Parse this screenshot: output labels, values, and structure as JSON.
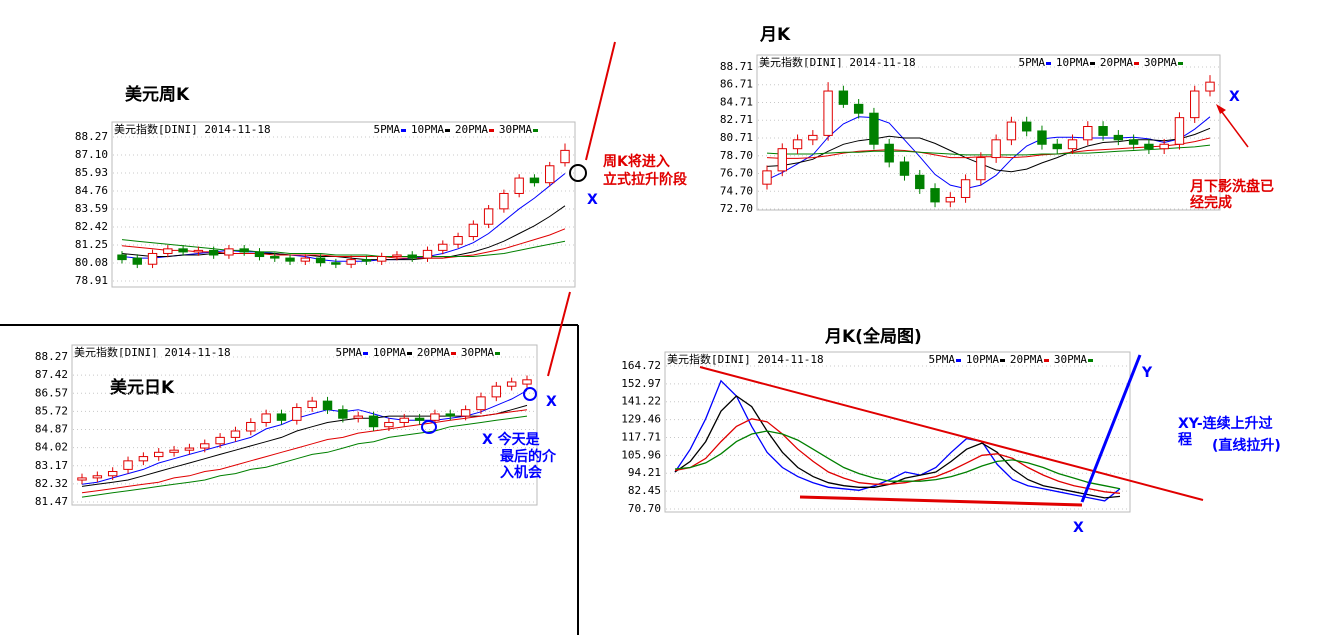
{
  "chart_data": [
    {
      "type": "candlestick",
      "title": "美元周K",
      "header": "美元指数[DINI] 2014-11-18",
      "annotations": [
        "周K将进入",
        "立式拉升阶段",
        "X"
      ],
      "ylim": [
        78.91,
        88.27
      ],
      "yticks": [
        88.27,
        {
          "value": 87.1,
          "label": "87.10"
        },
        85.93,
        84.76,
        83.59,
        82.42,
        81.25,
        80.08,
        78.91
      ],
      "grid": true,
      "up_color": "#e00000",
      "down_color": "#008000",
      "open": [
        80.6,
        80.4,
        80.0,
        80.7,
        81.0,
        80.8,
        80.9,
        80.6,
        81.0,
        80.8,
        80.5,
        80.4,
        80.2,
        80.4,
        80.1,
        80.0,
        80.3,
        80.2,
        80.5,
        80.6,
        80.4,
        80.9,
        81.3,
        81.8,
        82.6,
        83.6,
        84.6,
        85.6,
        85.3,
        86.6
      ],
      "high": [
        80.85,
        80.65,
        80.95,
        81.25,
        81.25,
        81.15,
        81.15,
        81.25,
        81.25,
        81.05,
        80.75,
        80.65,
        80.65,
        80.65,
        80.35,
        80.55,
        80.55,
        80.75,
        80.85,
        80.85,
        81.15,
        81.55,
        82.05,
        82.85,
        83.85,
        84.85,
        85.85,
        85.85,
        86.65,
        87.85
      ],
      "low": [
        80.05,
        79.75,
        79.75,
        80.45,
        80.55,
        80.55,
        80.35,
        80.35,
        80.55,
        80.25,
        80.15,
        79.95,
        79.95,
        79.85,
        79.75,
        79.75,
        79.95,
        79.95,
        80.25,
        80.15,
        80.15,
        80.65,
        81.05,
        81.55,
        82.35,
        83.35,
        84.35,
        85.05,
        85.05,
        86.35
      ],
      "close": [
        80.3,
        80.0,
        80.7,
        81.0,
        80.8,
        80.9,
        80.6,
        81.0,
        80.8,
        80.5,
        80.4,
        80.2,
        80.4,
        80.1,
        80.0,
        80.3,
        80.2,
        80.5,
        80.6,
        80.4,
        80.9,
        81.3,
        81.8,
        82.6,
        83.6,
        84.6,
        85.6,
        85.3,
        86.4,
        87.4
      ],
      "series": [
        {
          "name": "5PMA",
          "color": "#0000ff",
          "values": [
            80.5,
            80.4,
            80.4,
            80.5,
            80.6,
            80.7,
            80.8,
            80.9,
            80.8,
            80.8,
            80.7,
            80.6,
            80.5,
            80.3,
            80.2,
            80.2,
            80.2,
            80.3,
            80.3,
            80.4,
            80.5,
            80.7,
            81.0,
            81.4,
            82.0,
            82.8,
            83.6,
            84.3,
            85.1,
            85.9
          ]
        },
        {
          "name": "10PMA",
          "color": "#000000",
          "values": [
            80.7,
            80.6,
            80.5,
            80.5,
            80.6,
            80.6,
            80.7,
            80.7,
            80.7,
            80.7,
            80.7,
            80.6,
            80.6,
            80.5,
            80.5,
            80.4,
            80.3,
            80.3,
            80.3,
            80.3,
            80.4,
            80.4,
            80.6,
            80.8,
            81.1,
            81.5,
            82.0,
            82.5,
            83.1,
            83.8
          ]
        },
        {
          "name": "20PMA",
          "color": "#e00000",
          "values": [
            81.2,
            81.1,
            81.0,
            80.9,
            80.9,
            80.8,
            80.8,
            80.7,
            80.7,
            80.7,
            80.6,
            80.6,
            80.6,
            80.6,
            80.5,
            80.5,
            80.5,
            80.5,
            80.4,
            80.4,
            80.4,
            80.4,
            80.5,
            80.6,
            80.8,
            81.0,
            81.3,
            81.6,
            81.9,
            82.3
          ]
        },
        {
          "name": "30PMA",
          "color": "#008000",
          "values": [
            81.6,
            81.5,
            81.4,
            81.3,
            81.2,
            81.1,
            81.0,
            80.9,
            80.9,
            80.8,
            80.8,
            80.7,
            80.7,
            80.7,
            80.6,
            80.6,
            80.6,
            80.5,
            80.5,
            80.5,
            80.5,
            80.5,
            80.5,
            80.5,
            80.6,
            80.7,
            80.9,
            81.1,
            81.3,
            81.5
          ]
        }
      ]
    },
    {
      "type": "candlestick",
      "title": "月K",
      "header": "美元指数[DINI] 2014-11-18",
      "annotations": [
        "X",
        "月下影洗盘已",
        "经完成"
      ],
      "ylim": [
        72.7,
        88.71
      ],
      "yticks": [
        88.71,
        86.71,
        84.71,
        82.71,
        80.71,
        {
          "value": 78.7,
          "label": "78.70"
        },
        {
          "value": 76.7,
          "label": "76.70"
        },
        {
          "value": 74.7,
          "label": "74.70"
        },
        {
          "value": 72.7,
          "label": "72.70"
        }
      ],
      "grid": true,
      "up_color": "#e00000",
      "down_color": "#008000",
      "open": [
        75.5,
        77.0,
        79.5,
        80.5,
        81.0,
        86.0,
        84.5,
        83.5,
        80.0,
        78.0,
        76.5,
        75.0,
        73.5,
        74.0,
        76.0,
        78.5,
        80.5,
        82.5,
        81.5,
        80.0,
        79.5,
        80.5,
        82.0,
        81.0,
        80.5,
        80.0,
        79.5,
        80.0,
        83.0,
        86.0
      ],
      "high": [
        77.6,
        80.1,
        81.1,
        81.6,
        87.0,
        86.6,
        85.1,
        84.1,
        80.6,
        78.6,
        77.1,
        75.6,
        74.6,
        76.6,
        79.1,
        81.1,
        83.1,
        83.1,
        82.1,
        80.6,
        81.1,
        82.6,
        82.6,
        81.6,
        81.1,
        80.6,
        80.6,
        83.6,
        86.6,
        87.8
      ],
      "low": [
        74.9,
        76.4,
        78.9,
        79.9,
        80.4,
        84.1,
        82.9,
        79.4,
        77.4,
        75.9,
        74.4,
        72.9,
        72.9,
        73.4,
        75.4,
        77.9,
        79.9,
        80.9,
        79.4,
        78.9,
        78.9,
        79.9,
        80.4,
        79.9,
        79.4,
        78.9,
        78.9,
        79.4,
        82.4,
        85.4
      ],
      "close": [
        77.0,
        79.5,
        80.5,
        81.0,
        86.0,
        84.5,
        83.5,
        80.0,
        78.0,
        76.5,
        75.0,
        73.5,
        74.0,
        76.0,
        78.5,
        80.5,
        82.5,
        81.5,
        80.0,
        79.5,
        80.5,
        82.0,
        81.0,
        80.5,
        80.0,
        79.5,
        80.0,
        83.0,
        86.0,
        87.0
      ],
      "series": [
        {
          "name": "5PMA",
          "color": "#0000ff",
          "values": [
            76.0,
            76.8,
            77.8,
            78.8,
            80.8,
            82.3,
            83.1,
            83.0,
            82.4,
            80.5,
            78.6,
            76.6,
            75.4,
            75.0,
            75.4,
            76.5,
            78.3,
            79.8,
            80.6,
            80.8,
            80.8,
            80.7,
            80.7,
            80.7,
            80.8,
            80.6,
            80.2,
            80.6,
            81.7,
            83.1
          ]
        },
        {
          "name": "10PMA",
          "color": "#000000",
          "values": [
            77.5,
            77.6,
            77.9,
            78.3,
            79.2,
            80.0,
            80.4,
            80.6,
            80.9,
            80.7,
            80.7,
            80.1,
            79.3,
            78.5,
            77.8,
            77.1,
            76.9,
            77.2,
            77.9,
            78.5,
            79.2,
            79.8,
            80.2,
            80.3,
            80.5,
            80.5,
            80.4,
            80.6,
            81.1,
            81.8
          ]
        },
        {
          "name": "20PMA",
          "color": "#e00000",
          "values": [
            78.5,
            78.4,
            78.4,
            78.5,
            78.7,
            79.0,
            79.2,
            79.3,
            79.4,
            79.3,
            79.1,
            78.8,
            78.5,
            78.5,
            78.6,
            78.6,
            78.5,
            78.6,
            78.8,
            78.9,
            79.1,
            79.3,
            79.4,
            79.5,
            79.6,
            79.7,
            79.8,
            80.0,
            80.3,
            80.7
          ]
        },
        {
          "name": "30PMA",
          "color": "#008000",
          "values": [
            79.0,
            78.9,
            78.9,
            78.9,
            79.0,
            79.1,
            79.1,
            79.2,
            79.2,
            79.2,
            79.1,
            79.0,
            78.9,
            78.8,
            78.8,
            78.8,
            78.8,
            78.8,
            78.9,
            78.9,
            79.0,
            79.0,
            79.1,
            79.2,
            79.3,
            79.4,
            79.5,
            79.6,
            79.7,
            79.9
          ]
        }
      ]
    },
    {
      "type": "candlestick",
      "title": "美元日K",
      "header": "美元指数[DINI] 2014-11-18",
      "annotations": [
        "X",
        "X 今天是",
        "最后的介",
        "入机会"
      ],
      "ylim": [
        81.47,
        88.27
      ],
      "yticks": [
        88.27,
        87.42,
        86.57,
        85.72,
        84.87,
        84.02,
        83.17,
        82.32,
        81.47
      ],
      "grid": true,
      "up_color": "#e00000",
      "down_color": "#008000",
      "open": [
        82.5,
        82.6,
        82.7,
        83.0,
        83.4,
        83.6,
        83.8,
        83.9,
        84.0,
        84.2,
        84.5,
        84.8,
        85.2,
        85.6,
        85.3,
        85.9,
        86.2,
        85.8,
        85.4,
        85.5,
        85.0,
        85.2,
        85.4,
        85.3,
        85.6,
        85.5,
        85.8,
        86.4,
        86.9,
        87.0
      ],
      "high": [
        82.8,
        82.9,
        83.1,
        83.6,
        83.8,
        84.0,
        84.1,
        84.2,
        84.4,
        84.7,
        85.0,
        85.4,
        85.8,
        85.8,
        86.1,
        86.4,
        86.4,
        86.0,
        85.7,
        85.7,
        85.4,
        85.6,
        85.6,
        85.8,
        85.8,
        86.0,
        86.6,
        87.1,
        87.3,
        87.4
      ],
      "low": [
        82.3,
        82.4,
        82.5,
        82.8,
        83.2,
        83.4,
        83.6,
        83.7,
        83.8,
        84.0,
        84.3,
        84.6,
        85.0,
        85.1,
        85.1,
        85.7,
        85.6,
        85.2,
        85.2,
        84.8,
        84.8,
        85.0,
        85.1,
        85.1,
        85.3,
        85.3,
        85.6,
        86.2,
        86.7,
        86.8
      ],
      "close": [
        82.6,
        82.7,
        82.9,
        83.4,
        83.6,
        83.8,
        83.9,
        84.0,
        84.2,
        84.5,
        84.8,
        85.2,
        85.6,
        85.3,
        85.9,
        86.2,
        85.8,
        85.4,
        85.5,
        85.0,
        85.2,
        85.4,
        85.3,
        85.6,
        85.5,
        85.8,
        86.4,
        86.9,
        87.1,
        87.2
      ],
      "series": [
        {
          "name": "5PMA",
          "color": "#0000ff",
          "values": [
            82.3,
            82.4,
            82.6,
            82.8,
            83.0,
            83.3,
            83.5,
            83.7,
            83.9,
            84.1,
            84.3,
            84.5,
            84.9,
            85.1,
            85.4,
            85.6,
            85.8,
            85.7,
            85.8,
            85.6,
            85.4,
            85.3,
            85.3,
            85.3,
            85.4,
            85.5,
            85.7,
            86.0,
            86.3,
            86.7
          ]
        },
        {
          "name": "10PMA",
          "color": "#000000",
          "values": [
            82.2,
            82.3,
            82.4,
            82.5,
            82.7,
            82.9,
            83.1,
            83.3,
            83.5,
            83.7,
            83.9,
            84.1,
            84.3,
            84.5,
            84.8,
            85.0,
            85.2,
            85.3,
            85.4,
            85.4,
            85.5,
            85.5,
            85.5,
            85.5,
            85.5,
            85.5,
            85.5,
            85.6,
            85.8,
            86.0
          ]
        },
        {
          "name": "20PMA",
          "color": "#e00000",
          "values": [
            81.9,
            82.0,
            82.1,
            82.2,
            82.3,
            82.4,
            82.6,
            82.7,
            82.9,
            83.0,
            83.2,
            83.4,
            83.6,
            83.8,
            84.0,
            84.2,
            84.4,
            84.5,
            84.7,
            84.8,
            84.9,
            85.0,
            85.1,
            85.2,
            85.3,
            85.4,
            85.5,
            85.6,
            85.7,
            85.8
          ]
        },
        {
          "name": "30PMA",
          "color": "#008000",
          "values": [
            81.7,
            81.8,
            81.9,
            82.0,
            82.1,
            82.2,
            82.3,
            82.4,
            82.5,
            82.7,
            82.8,
            83.0,
            83.1,
            83.3,
            83.5,
            83.7,
            83.8,
            84.0,
            84.2,
            84.3,
            84.5,
            84.6,
            84.7,
            84.8,
            85.0,
            85.1,
            85.2,
            85.3,
            85.4,
            85.5
          ]
        }
      ]
    },
    {
      "type": "line",
      "title": "月K(全局图)",
      "header": "美元指数[DINI] 2014-11-18",
      "annotations": [
        "Y",
        "X",
        "XY-连续上升过",
        "程",
        "(直线拉升)"
      ],
      "ylim": [
        70.7,
        164.72
      ],
      "yticks": [
        164.72,
        152.97,
        141.22,
        129.46,
        117.71,
        105.96,
        94.21,
        82.45,
        {
          "value": 70.7,
          "label": "70.70"
        }
      ],
      "grid": true,
      "series": [
        {
          "name": "5PMA",
          "color": "#0000ff",
          "values": [
            95,
            110,
            130,
            155,
            145,
            125,
            108,
            98,
            92,
            88,
            85,
            84,
            83,
            86,
            90,
            95,
            93,
            98,
            108,
            117,
            115,
            100,
            90,
            86,
            84,
            82,
            80,
            78,
            76,
            84
          ]
        },
        {
          "name": "10PMA",
          "color": "#000000",
          "values": [
            95,
            102,
            115,
            135,
            145,
            138,
            122,
            108,
            98,
            92,
            88,
            86,
            85,
            85,
            87,
            91,
            93,
            95,
            102,
            110,
            114,
            108,
            97,
            90,
            86,
            84,
            82,
            80,
            78,
            79
          ]
        },
        {
          "name": "20PMA",
          "color": "#e00000",
          "values": [
            96,
            98,
            104,
            115,
            125,
            130,
            128,
            120,
            110,
            102,
            95,
            91,
            88,
            87,
            87,
            88,
            90,
            92,
            96,
            101,
            106,
            107,
            104,
            98,
            93,
            89,
            86,
            84,
            82,
            81
          ]
        },
        {
          "name": "30PMA",
          "color": "#008000",
          "values": [
            97,
            98,
            101,
            107,
            115,
            120,
            122,
            120,
            116,
            110,
            104,
            98,
            94,
            91,
            89,
            89,
            89,
            90,
            92,
            95,
            99,
            102,
            103,
            101,
            98,
            94,
            91,
            88,
            86,
            84
          ]
        }
      ]
    }
  ]
}
